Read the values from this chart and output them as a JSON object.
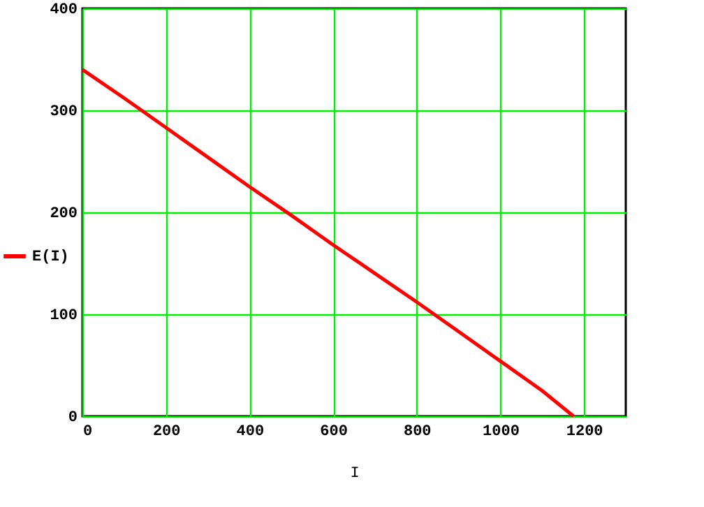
{
  "chart_data": {
    "type": "line",
    "xlabel": "I",
    "x": [
      0,
      100,
      200,
      300,
      400,
      500,
      600,
      700,
      800,
      900,
      1000,
      1100,
      1175
    ],
    "series": [
      {
        "name": "E(I)",
        "color": "#ff0000",
        "values": [
          340,
          312,
          283,
          254,
          225,
          197,
          168,
          140,
          112,
          83,
          54,
          25,
          0
        ]
      }
    ],
    "xlim": [
      0,
      1300
    ],
    "xticks": [
      0,
      200,
      400,
      600,
      800,
      1000,
      1200
    ],
    "ylim": [
      0,
      400
    ],
    "yticks": [
      0,
      100,
      200,
      300,
      400
    ],
    "grid": true,
    "legend": "left",
    "marker": "none",
    "line_style": "solid"
  }
}
